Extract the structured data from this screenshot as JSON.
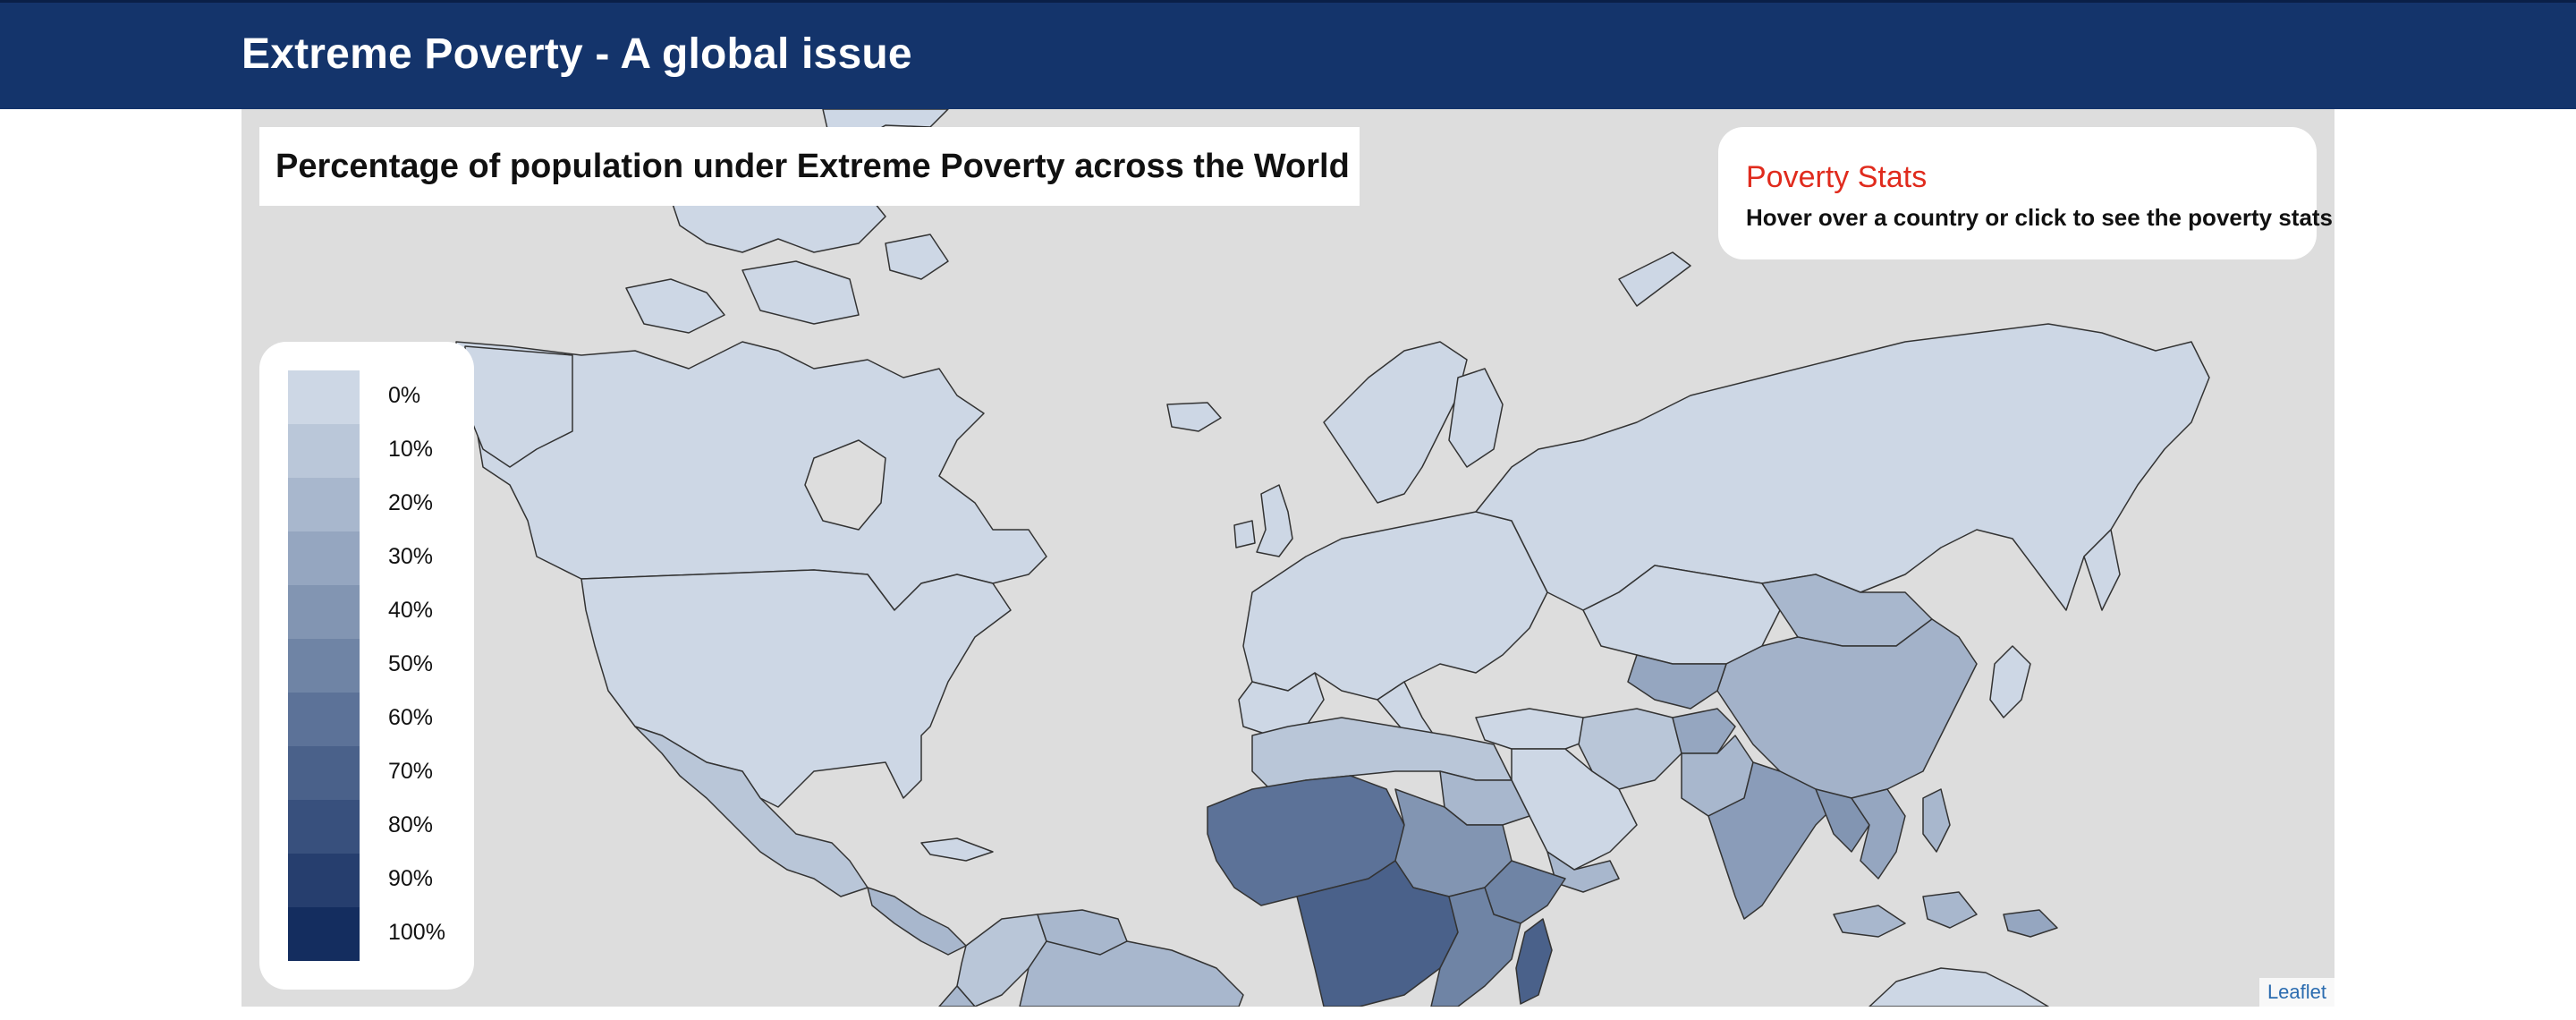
{
  "header": {
    "title": "Extreme Poverty - A global issue"
  },
  "map": {
    "title": "Percentage of population under Extreme Poverty across the World",
    "attribution": "Leaflet",
    "land_base_color": "#cfd8e6",
    "ocean_color": "#dddddd"
  },
  "stats_panel": {
    "heading": "Poverty Stats",
    "hint": "Hover over a country or click to see the poverty stats",
    "heading_color": "#e02b1d"
  },
  "legend": {
    "items": [
      {
        "label": "0%",
        "color": "#cdd7e5"
      },
      {
        "label": "10%",
        "color": "#bac7d9"
      },
      {
        "label": "20%",
        "color": "#a8b7cd"
      },
      {
        "label": "30%",
        "color": "#95a6c0"
      },
      {
        "label": "40%",
        "color": "#8295b2"
      },
      {
        "label": "50%",
        "color": "#6f84a5"
      },
      {
        "label": "60%",
        "color": "#5c7298"
      },
      {
        "label": "70%",
        "color": "#4a618a"
      },
      {
        "label": "80%",
        "color": "#38507d"
      },
      {
        "label": "90%",
        "color": "#263e6e"
      },
      {
        "label": "100%",
        "color": "#142d5f"
      }
    ]
  }
}
